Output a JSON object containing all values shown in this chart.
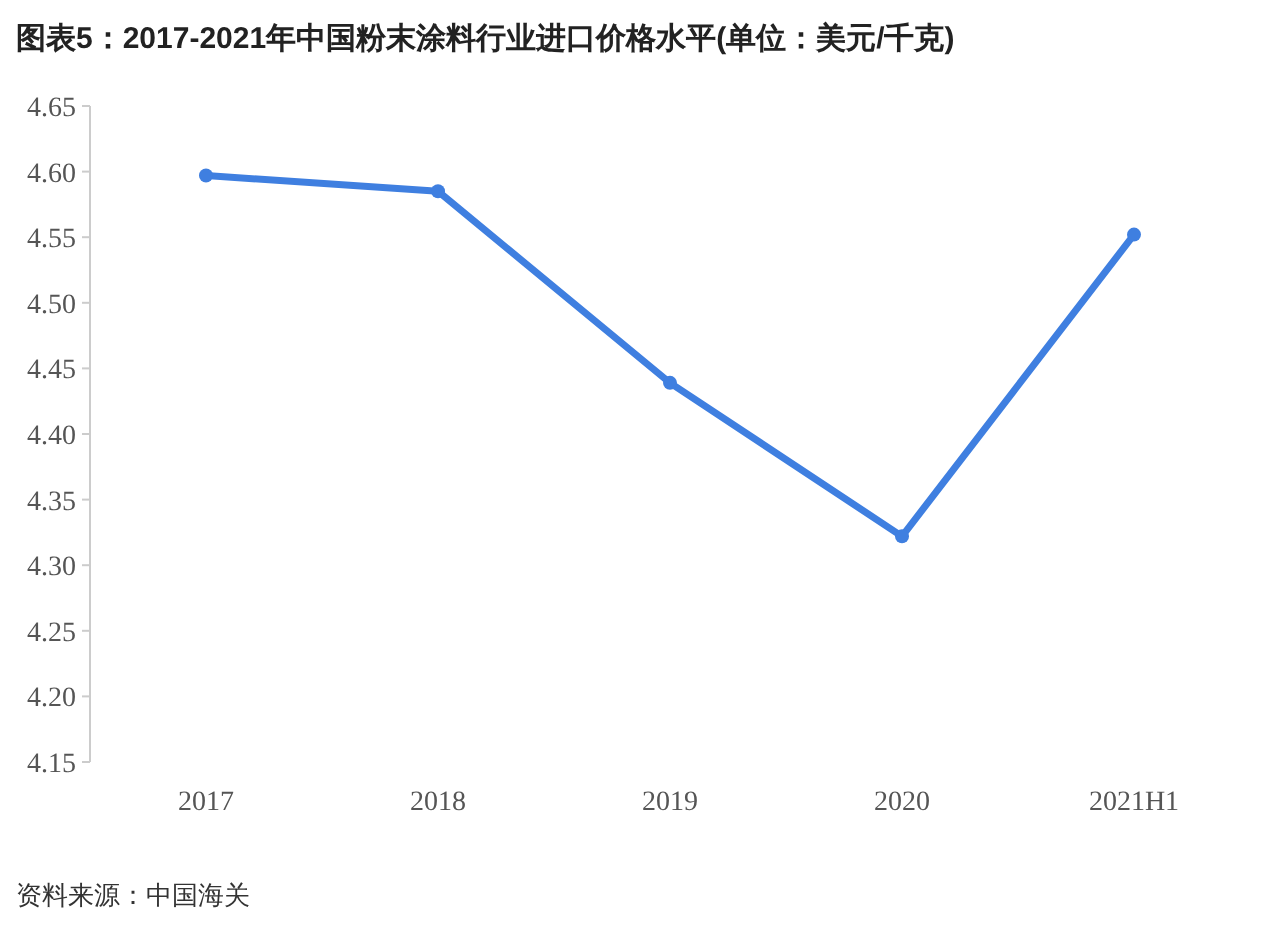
{
  "chart_data": {
    "type": "line",
    "title": "图表5：2017-2021年中国粉末涂料行业进口价格水平(单位：美元/千克)",
    "categories": [
      "2017",
      "2018",
      "2019",
      "2020",
      "2021H1"
    ],
    "series": [
      {
        "color": "#3f7fe0",
        "values": [
          4.597,
          4.585,
          4.439,
          4.322,
          4.552
        ]
      }
    ],
    "ylim": [
      4.15,
      4.65
    ],
    "yticks": [
      {
        "value": 4.15,
        "label": "4.15"
      },
      {
        "value": 4.2,
        "label": "4.20"
      },
      {
        "value": 4.25,
        "label": "4.25"
      },
      {
        "value": 4.3,
        "label": "4.30"
      },
      {
        "value": 4.35,
        "label": "4.35"
      },
      {
        "value": 4.4,
        "label": "4.40"
      },
      {
        "value": 4.45,
        "label": "4.45"
      },
      {
        "value": 4.5,
        "label": "4.50"
      },
      {
        "value": 4.55,
        "label": "4.55"
      },
      {
        "value": 4.6,
        "label": "4.60"
      },
      {
        "value": 4.65,
        "label": "4.65"
      }
    ],
    "grid": false,
    "marker": "circle",
    "line_style": "solid",
    "annotations": [
      "资料来源：中国海关"
    ]
  }
}
